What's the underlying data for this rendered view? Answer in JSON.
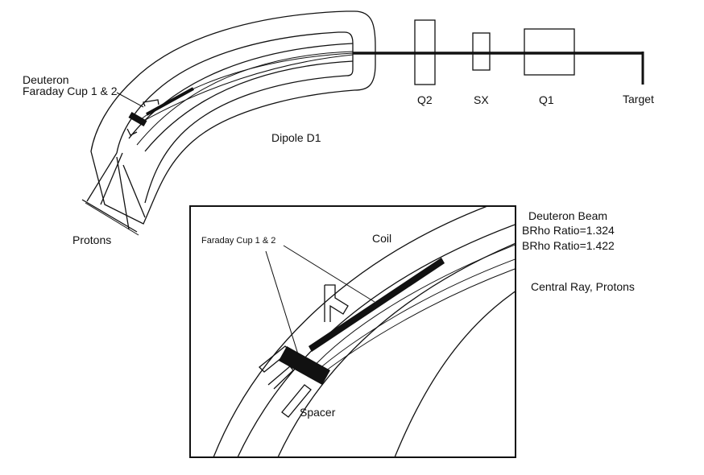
{
  "labels": {
    "deuteron": "Deuteron",
    "faraday_cup_main": "Faraday Cup 1 & 2",
    "dipole": "Dipole D1",
    "q2": "Q2",
    "sx": "SX",
    "q1": "Q1",
    "target": "Target",
    "protons": "Protons",
    "inset_faraday_cup": "Faraday Cup 1 & 2",
    "coil": "Coil",
    "deuteron_beam": "Deuteron Beam",
    "brho_1": "BRho Ratio=1.324",
    "brho_2": "BRho Ratio=1.422",
    "central_ray": "Central Ray, Protons",
    "spacer": "Spacer"
  }
}
